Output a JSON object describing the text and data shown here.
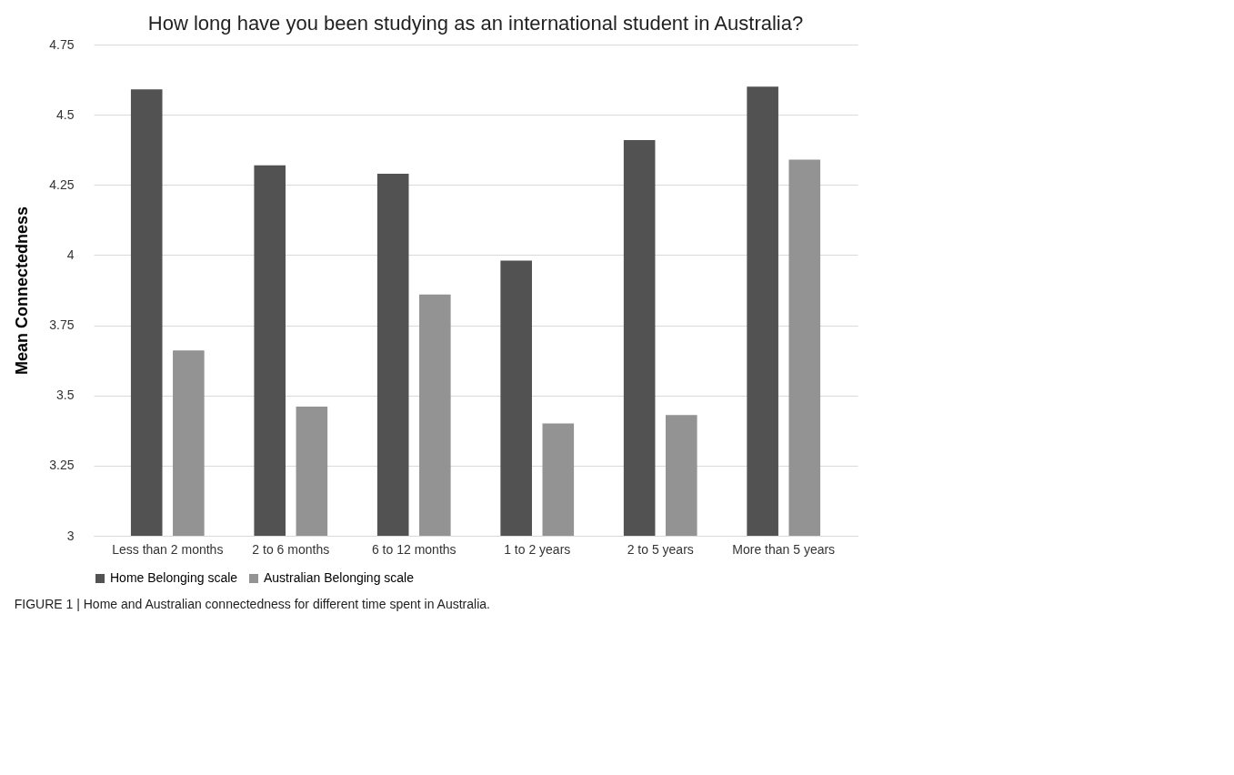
{
  "chart_data": {
    "type": "bar",
    "title": "How long have you been studying as an international student in Australia?",
    "ylabel": "Mean Connectedness",
    "categories": [
      "Less than 2 months",
      "2 to 6 months",
      "6 to 12 months",
      "1 to 2 years",
      "2 to 5 years",
      "More than 5 years"
    ],
    "series": [
      {
        "name": "Home Belonging scale",
        "color": "#525252",
        "values": [
          4.59,
          4.32,
          4.29,
          3.98,
          4.41,
          4.6
        ]
      },
      {
        "name": "Australian Belonging scale",
        "color": "#939393",
        "values": [
          3.66,
          3.46,
          3.86,
          3.4,
          3.43,
          4.34
        ]
      }
    ],
    "ylim": [
      3,
      4.75
    ],
    "yticks": [
      3,
      3.25,
      3.5,
      3.75,
      4,
      4.25,
      4.5,
      4.75
    ],
    "grid": "y",
    "legend": "bottom",
    "annotations": [
      "FIGURE 1 | Home and Australian connectedness for different time spent in Australia."
    ]
  }
}
